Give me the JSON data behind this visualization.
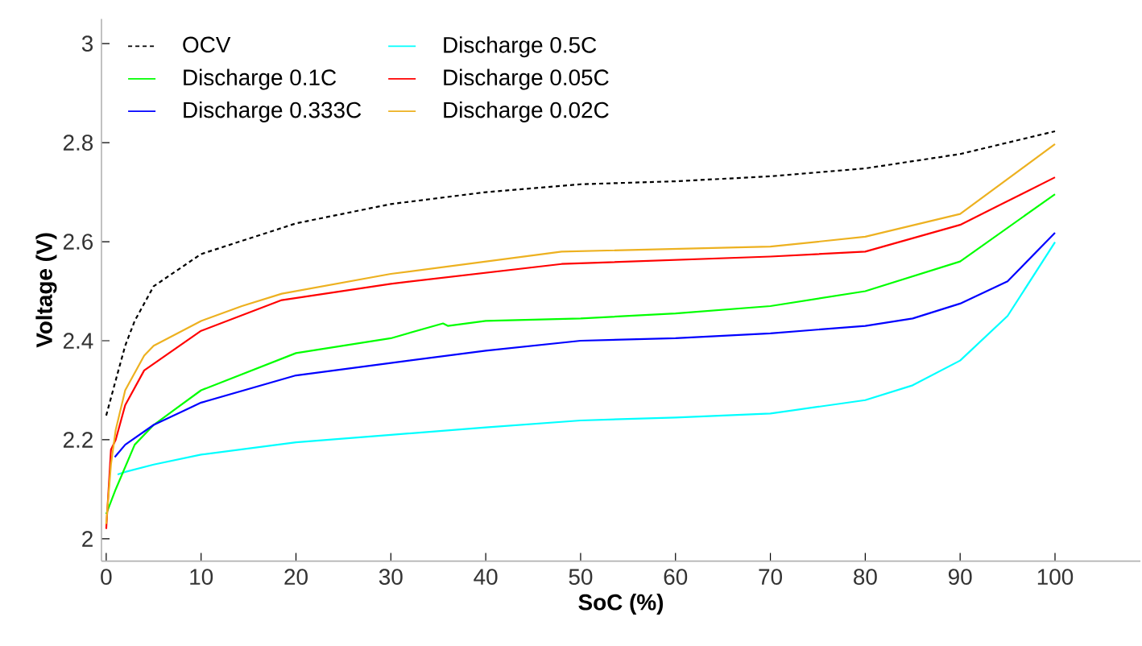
{
  "chart_data": {
    "type": "line",
    "xlabel": "SoC (%)",
    "ylabel": "Voltage (V)",
    "xlim": [
      -0.5,
      109
    ],
    "ylim": [
      1.955,
      3.05
    ],
    "xticks": [
      0,
      10,
      20,
      30,
      40,
      50,
      60,
      70,
      80,
      90,
      100
    ],
    "yticks": [
      2,
      2.2,
      2.4,
      2.6,
      2.8,
      3
    ],
    "grid": false,
    "legend": "top left",
    "series": [
      {
        "name": "OCV",
        "color": "#000000",
        "line_style": "dashed",
        "x": [
          0,
          1,
          2,
          3,
          5,
          10,
          20,
          30,
          40,
          50,
          60,
          70,
          80,
          90,
          100
        ],
        "values": [
          2.249,
          2.32,
          2.39,
          2.44,
          2.51,
          2.575,
          2.637,
          2.676,
          2.7,
          2.716,
          2.722,
          2.732,
          2.748,
          2.777,
          2.823
        ]
      },
      {
        "name": "Discharge 0.5C",
        "color": "#00ffff",
        "x": [
          1.2,
          2,
          5,
          10,
          20,
          30,
          40,
          50,
          60,
          70,
          80,
          85,
          90,
          95,
          100
        ],
        "values": [
          2.13,
          2.135,
          2.15,
          2.17,
          2.195,
          2.21,
          2.225,
          2.239,
          2.245,
          2.253,
          2.28,
          2.31,
          2.36,
          2.45,
          2.599
        ]
      },
      {
        "name": "Discharge 0.1C",
        "color": "#00ff00",
        "x": [
          0,
          1,
          3,
          5,
          10,
          20,
          30,
          35.5,
          36,
          40,
          50,
          60,
          70,
          80,
          90,
          100
        ],
        "values": [
          2.05,
          2.1,
          2.19,
          2.23,
          2.3,
          2.375,
          2.405,
          2.435,
          2.43,
          2.44,
          2.445,
          2.455,
          2.47,
          2.5,
          2.56,
          2.696
        ]
      },
      {
        "name": "Discharge 0.05C",
        "color": "#ff0000",
        "x": [
          0,
          0.5,
          1,
          2,
          4,
          10,
          18.5,
          30,
          48,
          70,
          80,
          90,
          100
        ],
        "values": [
          2.02,
          2.18,
          2.2,
          2.27,
          2.34,
          2.42,
          2.482,
          2.515,
          2.555,
          2.57,
          2.58,
          2.634,
          2.73
        ]
      },
      {
        "name": "Discharge 0.333C",
        "color": "#0000ff",
        "x": [
          0.9,
          2,
          5,
          10,
          20,
          30,
          40,
          50,
          60,
          70,
          80,
          85,
          90,
          95,
          100
        ],
        "values": [
          2.165,
          2.19,
          2.23,
          2.275,
          2.33,
          2.355,
          2.38,
          2.4,
          2.405,
          2.415,
          2.43,
          2.445,
          2.475,
          2.52,
          2.618
        ]
      },
      {
        "name": "Discharge 0.02C",
        "color": "#edb120",
        "x": [
          0,
          0.5,
          1,
          2,
          4,
          5,
          10,
          14.3,
          18.5,
          30,
          48,
          70,
          80,
          90,
          100
        ],
        "values": [
          2.03,
          2.15,
          2.22,
          2.3,
          2.37,
          2.39,
          2.44,
          2.47,
          2.495,
          2.535,
          2.58,
          2.59,
          2.61,
          2.656,
          2.797
        ]
      }
    ]
  }
}
